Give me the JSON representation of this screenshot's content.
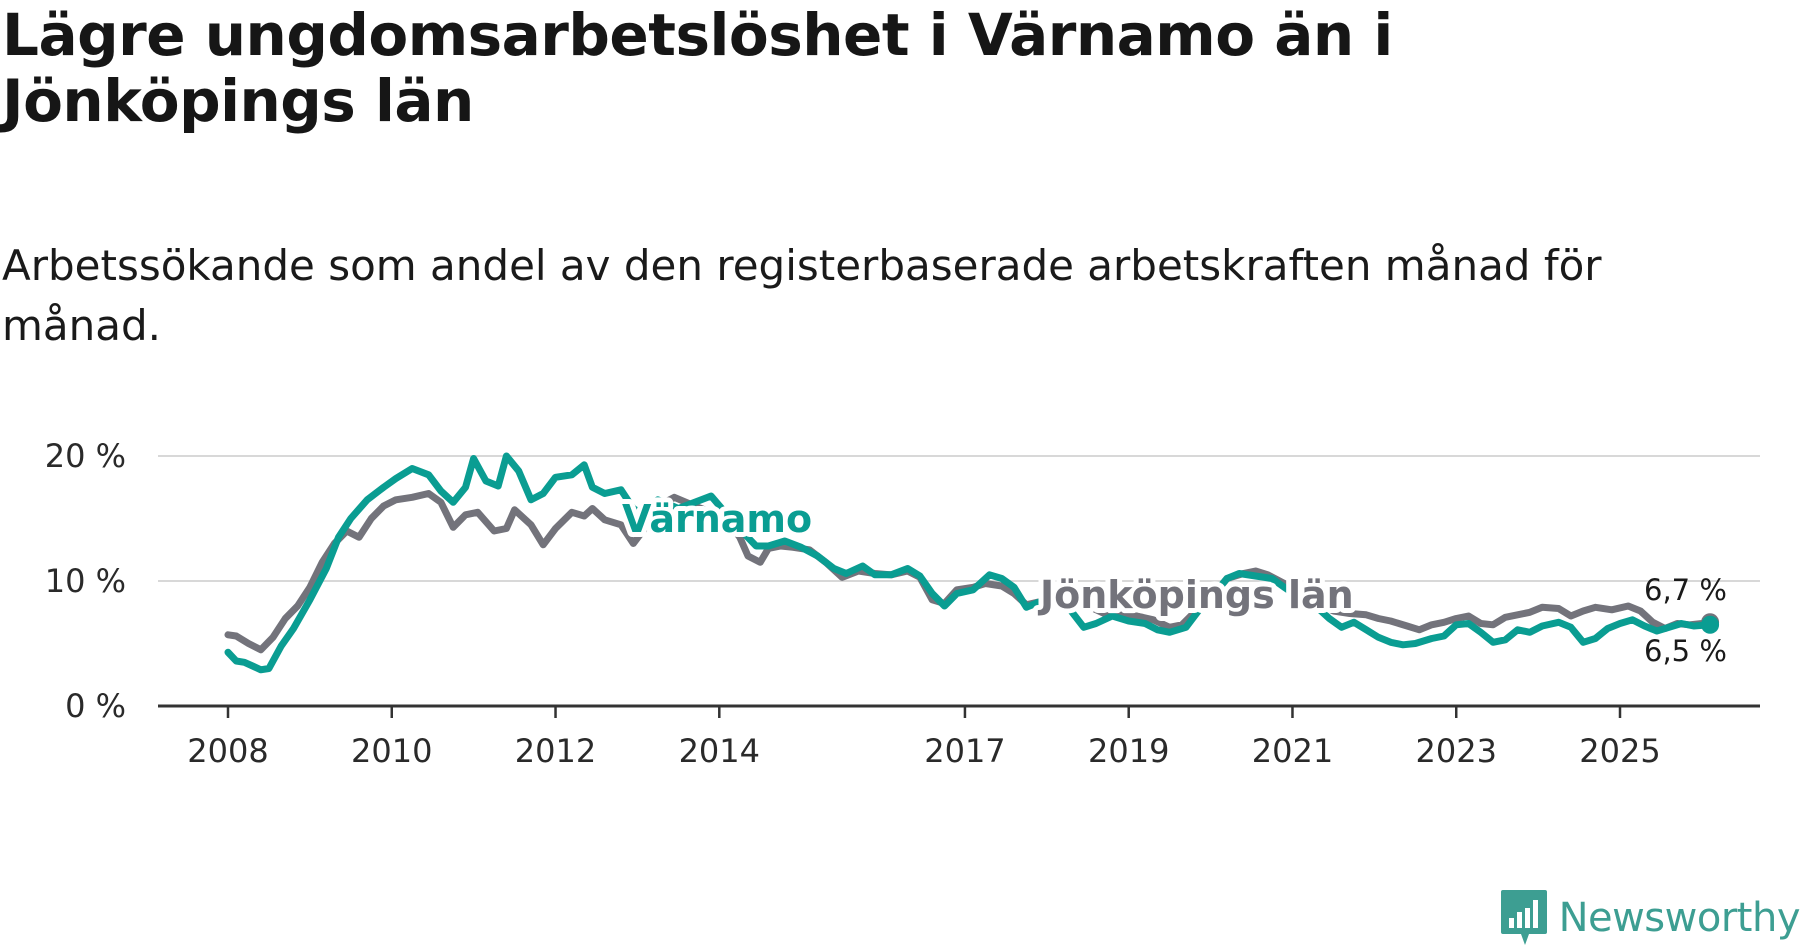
{
  "title": "Lägre ungdomsarbetslöshet i Värnamo än i Jönköpings län",
  "subtitle": "Arbetssökande som andel av den registerbaserade arbetskraften månad för månad.",
  "logo": {
    "text": "Newsworthy",
    "icon": "newsworthy-chart-bubble-icon"
  },
  "colors": {
    "varnamo": "#0a9d92",
    "jonkoping": "#73737b",
    "grid": "#d8d8d8",
    "axis": "#333333"
  },
  "chart_data": {
    "type": "line",
    "title": "",
    "xlabel": "",
    "ylabel": "",
    "ylim": [
      0,
      20
    ],
    "xlim": [
      2008,
      2026.6
    ],
    "yticks": [
      {
        "value": 0,
        "label": "0 %"
      },
      {
        "value": 10,
        "label": "10 %"
      },
      {
        "value": 20,
        "label": "20 %"
      }
    ],
    "xticks": [
      {
        "value": 2008,
        "label": "2008"
      },
      {
        "value": 2010,
        "label": "2010"
      },
      {
        "value": 2012,
        "label": "2012"
      },
      {
        "value": 2014,
        "label": "2014"
      },
      {
        "value": 2017,
        "label": "2017"
      },
      {
        "value": 2019,
        "label": "2019"
      },
      {
        "value": 2021,
        "label": "2021"
      },
      {
        "value": 2023,
        "label": "2023"
      },
      {
        "value": 2025,
        "label": "2025"
      }
    ],
    "series": [
      {
        "name": "Jönköpings län",
        "color": "#73737b",
        "end_label": "6,7 %",
        "points": [
          [
            2008.0,
            5.7
          ],
          [
            2008.1,
            5.6
          ],
          [
            2008.25,
            5.0
          ],
          [
            2008.4,
            4.5
          ],
          [
            2008.55,
            5.5
          ],
          [
            2008.7,
            7.0
          ],
          [
            2008.85,
            8.0
          ],
          [
            2009.0,
            9.5
          ],
          [
            2009.15,
            11.5
          ],
          [
            2009.3,
            13.0
          ],
          [
            2009.45,
            14.0
          ],
          [
            2009.6,
            13.5
          ],
          [
            2009.75,
            15.0
          ],
          [
            2009.9,
            16.0
          ],
          [
            2010.05,
            16.5
          ],
          [
            2010.25,
            16.7
          ],
          [
            2010.45,
            17.0
          ],
          [
            2010.6,
            16.3
          ],
          [
            2010.75,
            14.3
          ],
          [
            2010.9,
            15.3
          ],
          [
            2011.05,
            15.5
          ],
          [
            2011.25,
            14.0
          ],
          [
            2011.4,
            14.2
          ],
          [
            2011.5,
            15.7
          ],
          [
            2011.7,
            14.5
          ],
          [
            2011.85,
            12.9
          ],
          [
            2012.0,
            14.2
          ],
          [
            2012.2,
            15.5
          ],
          [
            2012.35,
            15.2
          ],
          [
            2012.45,
            15.8
          ],
          [
            2012.6,
            14.9
          ],
          [
            2012.8,
            14.5
          ],
          [
            2012.95,
            13.0
          ],
          [
            2013.1,
            14.3
          ],
          [
            2013.25,
            16.0
          ],
          [
            2013.45,
            16.7
          ],
          [
            2013.7,
            16.0
          ],
          [
            2013.9,
            15.5
          ],
          [
            2014.1,
            14.8
          ],
          [
            2014.25,
            13.5
          ],
          [
            2014.35,
            12.0
          ],
          [
            2014.5,
            11.5
          ],
          [
            2014.6,
            12.6
          ],
          [
            2014.75,
            12.8
          ],
          [
            2014.9,
            12.7
          ],
          [
            2015.1,
            12.5
          ],
          [
            2015.3,
            11.5
          ],
          [
            2015.5,
            10.3
          ],
          [
            2015.7,
            10.8
          ],
          [
            2015.9,
            10.6
          ],
          [
            2016.1,
            10.5
          ],
          [
            2016.3,
            10.8
          ],
          [
            2016.45,
            10.3
          ],
          [
            2016.6,
            8.5
          ],
          [
            2016.75,
            8.2
          ],
          [
            2016.9,
            9.3
          ],
          [
            2017.1,
            9.5
          ],
          [
            2017.25,
            9.8
          ],
          [
            2017.45,
            9.6
          ],
          [
            2017.6,
            9.0
          ],
          [
            2017.75,
            8.1
          ],
          [
            2017.95,
            8.4
          ],
          [
            2018.1,
            8.6
          ],
          [
            2018.3,
            8.5
          ],
          [
            2018.5,
            8.0
          ],
          [
            2018.7,
            7.4
          ],
          [
            2018.9,
            7.3
          ],
          [
            2019.1,
            7.2
          ],
          [
            2019.3,
            6.9
          ],
          [
            2019.5,
            6.3
          ],
          [
            2019.65,
            6.5
          ],
          [
            2019.85,
            7.8
          ],
          [
            2020.05,
            9.0
          ],
          [
            2020.2,
            10.2
          ],
          [
            2020.4,
            10.6
          ],
          [
            2020.55,
            10.8
          ],
          [
            2020.7,
            10.5
          ],
          [
            2020.9,
            9.8
          ],
          [
            2021.1,
            9.0
          ],
          [
            2021.3,
            8.2
          ],
          [
            2021.5,
            7.6
          ],
          [
            2021.7,
            7.4
          ],
          [
            2021.9,
            7.3
          ],
          [
            2022.05,
            7.0
          ],
          [
            2022.2,
            6.8
          ],
          [
            2022.4,
            6.4
          ],
          [
            2022.55,
            6.1
          ],
          [
            2022.7,
            6.5
          ],
          [
            2022.85,
            6.7
          ],
          [
            2023.0,
            7.0
          ],
          [
            2023.15,
            7.2
          ],
          [
            2023.3,
            6.6
          ],
          [
            2023.45,
            6.5
          ],
          [
            2023.6,
            7.1
          ],
          [
            2023.75,
            7.3
          ],
          [
            2023.9,
            7.5
          ],
          [
            2024.05,
            7.9
          ],
          [
            2024.25,
            7.8
          ],
          [
            2024.4,
            7.2
          ],
          [
            2024.55,
            7.6
          ],
          [
            2024.7,
            7.9
          ],
          [
            2024.9,
            7.7
          ],
          [
            2025.1,
            8.0
          ],
          [
            2025.25,
            7.6
          ],
          [
            2025.4,
            6.7
          ],
          [
            2025.55,
            6.2
          ],
          [
            2025.7,
            6.6
          ],
          [
            2025.85,
            6.5
          ],
          [
            2026.0,
            6.6
          ],
          [
            2026.1,
            6.7
          ]
        ]
      },
      {
        "name": "Värnamo",
        "color": "#0a9d92",
        "end_label": "6,5 %",
        "points": [
          [
            2008.0,
            4.3
          ],
          [
            2008.1,
            3.6
          ],
          [
            2008.2,
            3.5
          ],
          [
            2008.3,
            3.2
          ],
          [
            2008.4,
            2.9
          ],
          [
            2008.5,
            3.0
          ],
          [
            2008.65,
            4.8
          ],
          [
            2008.8,
            6.2
          ],
          [
            2009.0,
            8.5
          ],
          [
            2009.2,
            11.0
          ],
          [
            2009.35,
            13.5
          ],
          [
            2009.5,
            15.0
          ],
          [
            2009.7,
            16.5
          ],
          [
            2009.9,
            17.5
          ],
          [
            2010.05,
            18.2
          ],
          [
            2010.25,
            19.0
          ],
          [
            2010.45,
            18.5
          ],
          [
            2010.6,
            17.2
          ],
          [
            2010.75,
            16.3
          ],
          [
            2010.9,
            17.5
          ],
          [
            2011.0,
            19.8
          ],
          [
            2011.15,
            18.0
          ],
          [
            2011.3,
            17.6
          ],
          [
            2011.4,
            20.0
          ],
          [
            2011.55,
            18.8
          ],
          [
            2011.7,
            16.5
          ],
          [
            2011.85,
            17.0
          ],
          [
            2012.0,
            18.3
          ],
          [
            2012.2,
            18.5
          ],
          [
            2012.35,
            19.3
          ],
          [
            2012.45,
            17.5
          ],
          [
            2012.6,
            17.0
          ],
          [
            2012.8,
            17.3
          ],
          [
            2012.95,
            15.8
          ],
          [
            2013.1,
            15.2
          ],
          [
            2013.25,
            16.5
          ],
          [
            2013.5,
            15.8
          ],
          [
            2013.9,
            16.8
          ],
          [
            2014.2,
            14.5
          ],
          [
            2014.45,
            12.8
          ],
          [
            2014.6,
            12.8
          ],
          [
            2014.8,
            13.2
          ],
          [
            2015.0,
            12.7
          ],
          [
            2015.2,
            12.0
          ],
          [
            2015.4,
            11.0
          ],
          [
            2015.55,
            10.6
          ],
          [
            2015.75,
            11.2
          ],
          [
            2015.9,
            10.5
          ],
          [
            2016.1,
            10.5
          ],
          [
            2016.3,
            11.0
          ],
          [
            2016.45,
            10.4
          ],
          [
            2016.6,
            9.0
          ],
          [
            2016.75,
            8.0
          ],
          [
            2016.9,
            9.0
          ],
          [
            2017.1,
            9.3
          ],
          [
            2017.3,
            10.5
          ],
          [
            2017.45,
            10.2
          ],
          [
            2017.6,
            9.5
          ],
          [
            2017.75,
            7.9
          ],
          [
            2017.9,
            8.3
          ],
          [
            2018.1,
            8.5
          ],
          [
            2018.25,
            8.0
          ],
          [
            2018.45,
            6.3
          ],
          [
            2018.6,
            6.6
          ],
          [
            2018.8,
            7.2
          ],
          [
            2019.0,
            6.8
          ],
          [
            2019.2,
            6.6
          ],
          [
            2019.35,
            6.1
          ],
          [
            2019.5,
            5.9
          ],
          [
            2019.7,
            6.3
          ],
          [
            2019.85,
            7.6
          ],
          [
            2020.05,
            9.0
          ],
          [
            2020.2,
            10.2
          ],
          [
            2020.35,
            10.6
          ],
          [
            2020.55,
            10.4
          ],
          [
            2020.75,
            10.2
          ],
          [
            2020.9,
            9.5
          ],
          [
            2021.1,
            8.6
          ],
          [
            2021.3,
            7.9
          ],
          [
            2021.45,
            7.0
          ],
          [
            2021.6,
            6.3
          ],
          [
            2021.75,
            6.7
          ],
          [
            2021.9,
            6.1
          ],
          [
            2022.05,
            5.5
          ],
          [
            2022.2,
            5.1
          ],
          [
            2022.35,
            4.9
          ],
          [
            2022.5,
            5.0
          ],
          [
            2022.7,
            5.4
          ],
          [
            2022.85,
            5.6
          ],
          [
            2023.0,
            6.5
          ],
          [
            2023.15,
            6.6
          ],
          [
            2023.3,
            5.9
          ],
          [
            2023.45,
            5.1
          ],
          [
            2023.6,
            5.3
          ],
          [
            2023.75,
            6.1
          ],
          [
            2023.9,
            5.9
          ],
          [
            2024.05,
            6.4
          ],
          [
            2024.25,
            6.7
          ],
          [
            2024.4,
            6.3
          ],
          [
            2024.55,
            5.1
          ],
          [
            2024.7,
            5.4
          ],
          [
            2024.85,
            6.2
          ],
          [
            2025.0,
            6.6
          ],
          [
            2025.15,
            6.9
          ],
          [
            2025.3,
            6.4
          ],
          [
            2025.45,
            6.0
          ],
          [
            2025.6,
            6.3
          ],
          [
            2025.75,
            6.6
          ],
          [
            2025.9,
            6.4
          ],
          [
            2026.1,
            6.5
          ]
        ]
      }
    ]
  }
}
